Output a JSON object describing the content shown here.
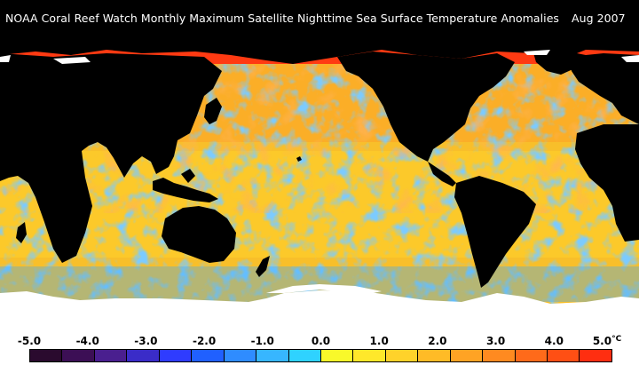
{
  "title": "NOAA Coral Reef Watch Monthly Maximum Satellite Nighttime Sea Surface Temperature Anomalies",
  "date": "Aug 2007",
  "legend": {
    "ticks": [
      "-5.0",
      "-4.0",
      "-3.0",
      "-2.0",
      "-1.0",
      "0.0",
      "1.0",
      "2.0",
      "3.0",
      "4.0",
      "5.0"
    ],
    "unit": "°C",
    "colors": [
      "#2a0a2e",
      "#3c0f55",
      "#4a1f8f",
      "#3a2cc8",
      "#2f3cff",
      "#2060ff",
      "#2f8cff",
      "#37b6ff",
      "#2fd2ff",
      "#f9f92a",
      "#ffe82a",
      "#ffd22a",
      "#ffbb26",
      "#ffa324",
      "#ff8a20",
      "#ff6a1a",
      "#ff4f14",
      "#ff2e10"
    ]
  },
  "map_colors": {
    "land": "#000000",
    "ice": "#ffffff",
    "ocean_base": "#f8c028"
  }
}
